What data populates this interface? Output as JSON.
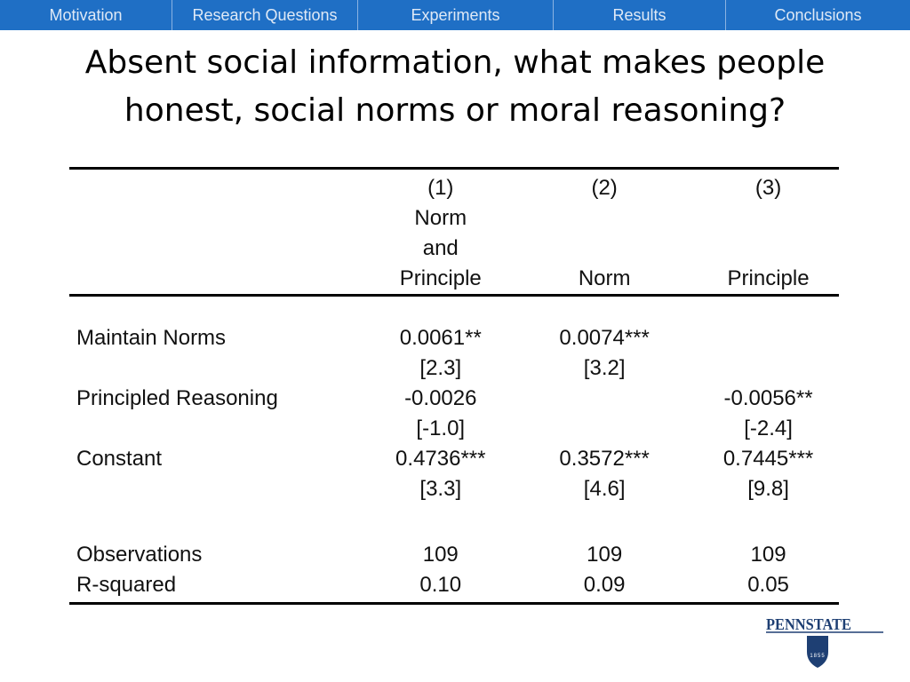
{
  "nav": {
    "items": [
      {
        "label": "Motivation"
      },
      {
        "label": "Research Questions"
      },
      {
        "label": "Experiments"
      },
      {
        "label": "Results"
      },
      {
        "label": "Conclusions"
      }
    ]
  },
  "slide": {
    "title_line1": "Absent social information, what makes people",
    "title_line2": "honest, social norms or moral reasoning?"
  },
  "table": {
    "headers": {
      "c1": {
        "num": "(1)",
        "name_lines": [
          "Norm",
          "and",
          "Principle"
        ]
      },
      "c2": {
        "num": "(2)",
        "name": "Norm"
      },
      "c3": {
        "num": "(3)",
        "name": "Principle"
      }
    },
    "rows": {
      "maintain_norms": {
        "label": "Maintain Norms",
        "c1": "0.0061**",
        "c1_t": "[2.3]",
        "c2": "0.0074***",
        "c2_t": "[3.2]",
        "c3": "",
        "c3_t": ""
      },
      "principled_reasoning": {
        "label": "Principled Reasoning",
        "c1": "-0.0026",
        "c1_t": "[-1.0]",
        "c2": "",
        "c2_t": "",
        "c3": "-0.0056**",
        "c3_t": "[-2.4]"
      },
      "constant": {
        "label": "Constant",
        "c1": "0.4736***",
        "c1_t": "[3.3]",
        "c2": "0.3572***",
        "c2_t": "[4.6]",
        "c3": "0.7445***",
        "c3_t": "[9.8]"
      },
      "observations": {
        "label": "Observations",
        "c1": "109",
        "c2": "109",
        "c3": "109"
      },
      "r_squared": {
        "label": "R-squared",
        "c1": "0.10",
        "c2": "0.09",
        "c3": "0.05"
      }
    }
  },
  "logo": {
    "text": "PENNSTATE",
    "year": "1855",
    "color": "#1e3f73"
  }
}
